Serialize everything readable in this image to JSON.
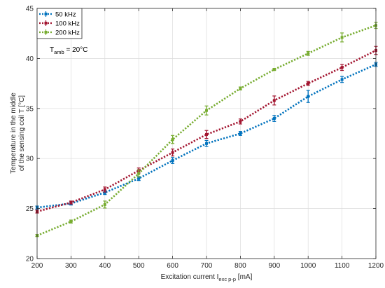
{
  "chart_data": {
    "type": "line",
    "title": "",
    "xlabel": "Excitation current I",
    "xlabel_sub": "exc p-p",
    "xlabel_unit": " [mA]",
    "ylabel_line1": "Temperature in the middle",
    "ylabel_line2": "of the sensing coil T [°C]",
    "xlim": [
      200,
      1200
    ],
    "ylim": [
      20,
      45
    ],
    "x_ticks": [
      200,
      300,
      400,
      500,
      600,
      700,
      800,
      900,
      1000,
      1100,
      1200
    ],
    "y_ticks": [
      20,
      25,
      30,
      35,
      40,
      45
    ],
    "grid": true,
    "legend_position": "top-left",
    "annotation": {
      "prefix": "T",
      "sub": "amb",
      "suffix": " = 20°C"
    },
    "series": [
      {
        "name": "50 kHz",
        "color": "#0072BD",
        "x": [
          200,
          300,
          400,
          500,
          600,
          700,
          800,
          900,
          1000,
          1100,
          1200
        ],
        "y": [
          25.1,
          25.5,
          26.6,
          28.0,
          29.8,
          31.5,
          32.5,
          34.0,
          36.2,
          37.9,
          39.4
        ],
        "err": [
          0.15,
          0.15,
          0.2,
          0.2,
          0.3,
          0.3,
          0.2,
          0.3,
          0.6,
          0.3,
          0.2
        ]
      },
      {
        "name": "100 kHz",
        "color": "#A2142F",
        "x": [
          200,
          300,
          400,
          500,
          600,
          700,
          800,
          900,
          1000,
          1100,
          1200
        ],
        "y": [
          24.7,
          25.6,
          26.9,
          28.8,
          30.6,
          32.4,
          33.7,
          35.8,
          37.5,
          39.1,
          40.8
        ],
        "err": [
          0.15,
          0.15,
          0.25,
          0.25,
          0.35,
          0.4,
          0.25,
          0.45,
          0.2,
          0.3,
          0.4
        ]
      },
      {
        "name": "200 kHz",
        "color": "#77AC30",
        "x": [
          200,
          300,
          400,
          500,
          600,
          700,
          800,
          900,
          1000,
          1100,
          1200
        ],
        "y": [
          22.3,
          23.7,
          25.4,
          28.5,
          31.9,
          34.8,
          37.0,
          38.9,
          40.5,
          42.1,
          43.3
        ],
        "err": [
          0.1,
          0.15,
          0.35,
          0.35,
          0.4,
          0.45,
          0.15,
          0.1,
          0.2,
          0.45,
          0.3
        ]
      }
    ]
  }
}
